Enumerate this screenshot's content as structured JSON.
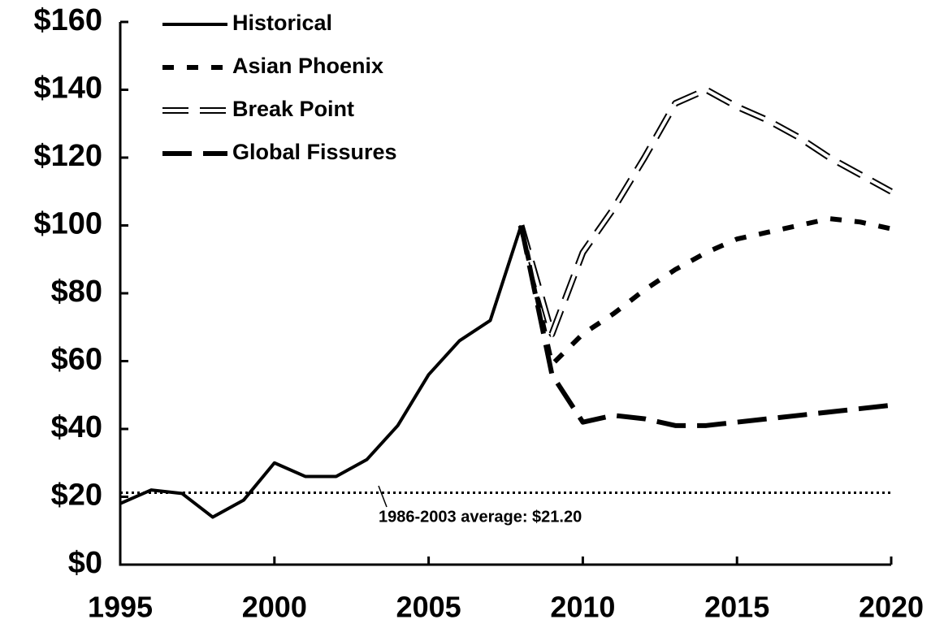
{
  "chart_data": {
    "type": "line",
    "x": [
      1995,
      1996,
      1997,
      1998,
      1999,
      2000,
      2001,
      2002,
      2003,
      2004,
      2005,
      2006,
      2007,
      2008,
      2009,
      2010,
      2011,
      2012,
      2013,
      2014,
      2015,
      2016,
      2017,
      2018,
      2019,
      2020
    ],
    "series": [
      {
        "name": "Historical",
        "color": "#000000",
        "style": "solid",
        "values": [
          18,
          22,
          21,
          14,
          19,
          30,
          26,
          26,
          31,
          41,
          56,
          66,
          72,
          100,
          null,
          null,
          null,
          null,
          null,
          null,
          null,
          null,
          null,
          null,
          null,
          null
        ]
      },
      {
        "name": "Asian Phoenix",
        "color": "#000000",
        "style": "dash",
        "values": [
          null,
          null,
          null,
          null,
          null,
          null,
          null,
          null,
          null,
          null,
          null,
          null,
          null,
          100,
          59,
          68,
          74,
          81,
          87,
          92,
          96,
          98,
          100,
          102,
          101,
          99
        ]
      },
      {
        "name": "Break Point",
        "color": "#000000",
        "style": "double-dash",
        "values": [
          null,
          null,
          null,
          null,
          null,
          null,
          null,
          null,
          null,
          null,
          null,
          null,
          null,
          100,
          68,
          92,
          105,
          120,
          136,
          140,
          135,
          131,
          126,
          120,
          115,
          110
        ]
      },
      {
        "name": "Global Fissures",
        "color": "#000000",
        "style": "long-dash",
        "values": [
          null,
          null,
          null,
          null,
          null,
          null,
          null,
          null,
          null,
          null,
          null,
          null,
          null,
          100,
          56,
          42,
          44,
          43,
          41,
          41,
          42,
          43,
          44,
          45,
          46,
          47
        ]
      }
    ],
    "xlim": [
      1995,
      2020
    ],
    "xticks": [
      1995,
      2000,
      2005,
      2010,
      2015,
      2020
    ],
    "ylim": [
      0,
      160
    ],
    "yticks": [
      {
        "value": 0,
        "label": "$0"
      },
      {
        "value": 20,
        "label": "$20"
      },
      {
        "value": 40,
        "label": "$40"
      },
      {
        "value": 60,
        "label": "$60"
      },
      {
        "value": 80,
        "label": "$80"
      },
      {
        "value": 100,
        "label": "$100"
      },
      {
        "value": 120,
        "label": "$120"
      },
      {
        "value": 140,
        "label": "$140"
      },
      {
        "value": 160,
        "label": "$160"
      }
    ],
    "reference_line": {
      "value": 21.2,
      "label": "1986-2003 average: $21.20"
    },
    "legend": "top-left"
  }
}
